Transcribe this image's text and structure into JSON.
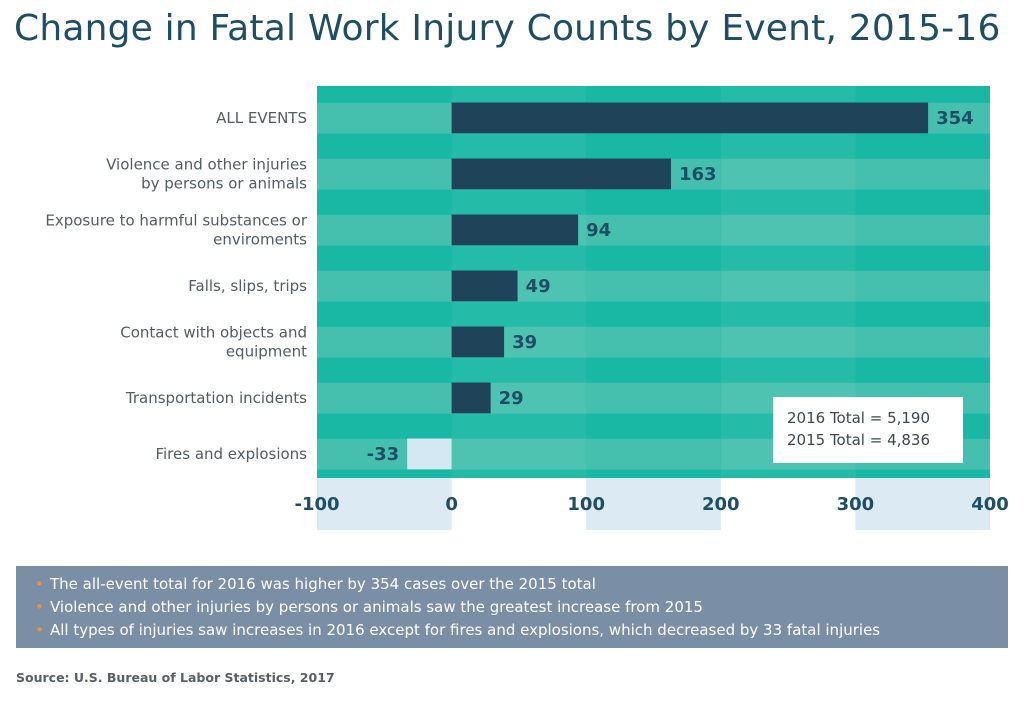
{
  "title": "Change in Fatal Work Injury Counts by Event, 2015-16",
  "chart_data": {
    "type": "bar",
    "orientation": "horizontal",
    "title": "Change in Fatal Work Injury Counts by Event, 2015-16",
    "categories": [
      [
        "ALL EVENTS"
      ],
      [
        "Violence and other injuries",
        "by persons or animals"
      ],
      [
        "Exposure to harmful substances or",
        "enviroments"
      ],
      [
        "Falls, slips, trips"
      ],
      [
        "Contact with objects and",
        "equipment"
      ],
      [
        "Transportation incidents"
      ],
      [
        "Fires and explosions"
      ]
    ],
    "values": [
      354,
      163,
      94,
      49,
      39,
      29,
      -33
    ],
    "xlim": [
      -100,
      400
    ],
    "xticks": [
      -100,
      0,
      100,
      200,
      300,
      400
    ],
    "xlabel": "",
    "ylabel": "",
    "grid": true,
    "colors": {
      "positive_bar": "#1f4459",
      "negative_bar": "#d4e8f3",
      "background_light": "#4ec1b0",
      "background_dark": "#19b8a4",
      "tick_band": "#dbeaf3"
    },
    "annotation": [
      "2016 Total = 5,190",
      "2015 Total = 4,836"
    ]
  },
  "totals": {
    "line1": "2016 Total = 5,190",
    "line2": "2015 Total = 4,836"
  },
  "notes": [
    "The all-event total for 2016 was higher by 354 cases over the 2015 total",
    "Violence and other injuries by persons or animals saw the greatest increase from 2015",
    "All types of injuries saw increases in 2016 except for fires and explosions, which decreased by 33 fatal injuries"
  ],
  "source": "Source: U.S. Bureau of Labor Statistics, 2017"
}
